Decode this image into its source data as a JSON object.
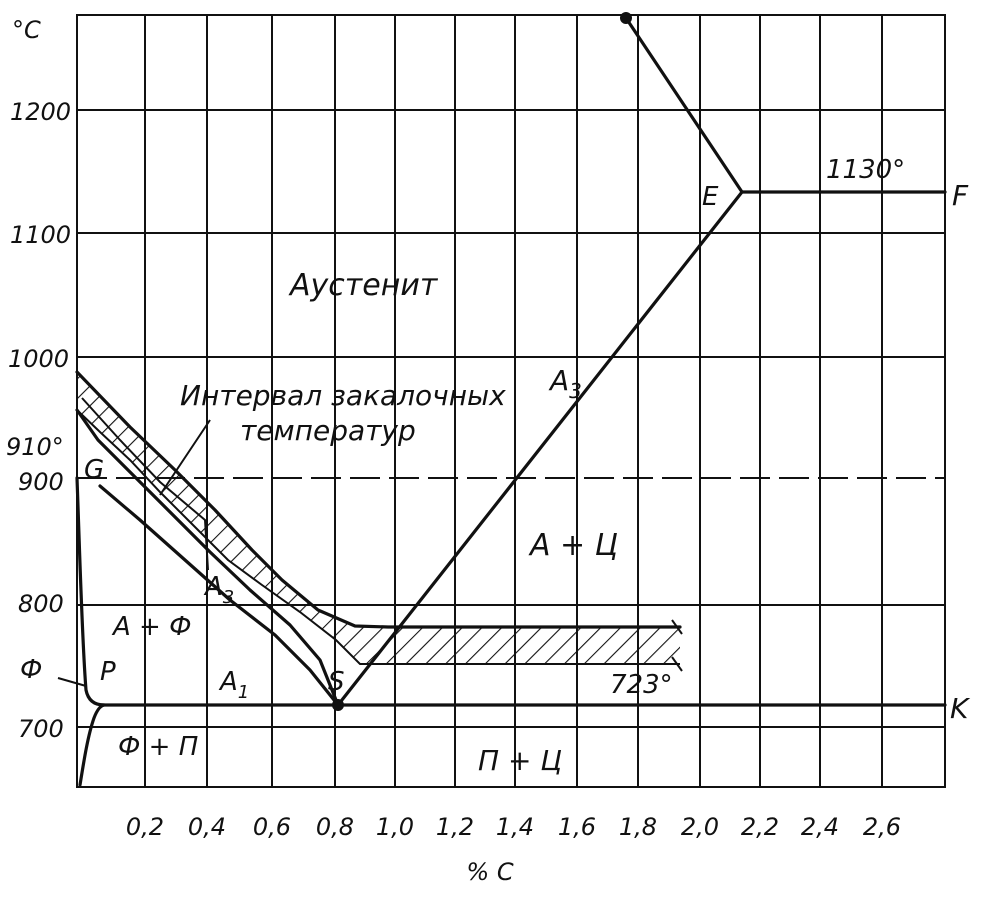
{
  "axes": {
    "y_unit": "°C",
    "x_unit": "% C",
    "y_ticks": [
      "1200",
      "1100",
      "1000",
      "900",
      "800",
      "700"
    ],
    "x_ticks": [
      "0,2",
      "0,4",
      "0,6",
      "0,8",
      "1,0",
      "1,2",
      "1,4",
      "1,6",
      "1,8",
      "2,0",
      "2,2",
      "2,4",
      "2,6"
    ]
  },
  "annotations": {
    "t910": "910°",
    "t1130": "1130°",
    "t723": "723°"
  },
  "phases": {
    "austenite": "Аустенит",
    "a_plus_c": "А + Ц",
    "a_plus_f": "А + Ф",
    "f_plus_p": "Ф + П",
    "p_plus_c": "П + Ц",
    "ferrite": "Ф"
  },
  "lines": {
    "a3_left": "A",
    "a3_left_sub": "3",
    "a3_right": "A",
    "a3_right_sub": "3",
    "a1": "A",
    "a1_sub": "1"
  },
  "points": {
    "G": "G",
    "P": "P",
    "S": "S",
    "E": "E",
    "F": "F",
    "K": "K"
  },
  "hardening_label_line1": "Интервал закалочных",
  "hardening_label_line2": "температур"
}
